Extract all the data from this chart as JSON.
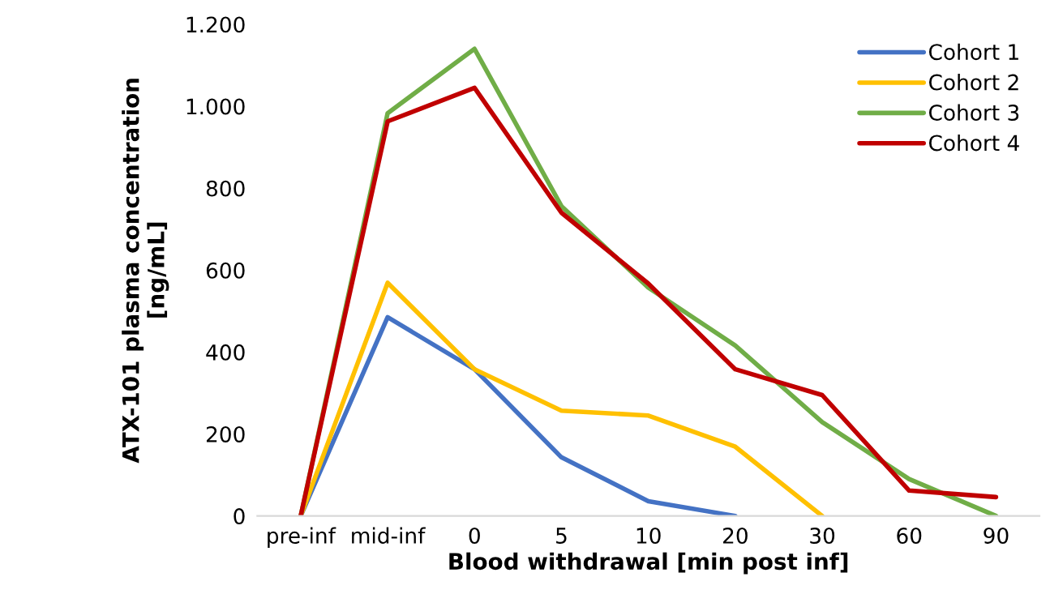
{
  "chart_data": {
    "type": "line",
    "xlabel": "Blood withdrawal [min post inf]",
    "ylabel": "ATX-101 plasma concentration\n[ng/mL]",
    "categories": [
      "pre-inf",
      "mid-inf",
      "0",
      "5",
      "10",
      "20",
      "30",
      "60",
      "90"
    ],
    "series": [
      {
        "name": "Cohort 1",
        "color": "#4472c4",
        "values": [
          0,
          485,
          358,
          143,
          36,
          0,
          null,
          null,
          null
        ]
      },
      {
        "name": "Cohort 2",
        "color": "#ffc000",
        "values": [
          0,
          569,
          358,
          257,
          245,
          169,
          0,
          null,
          null
        ]
      },
      {
        "name": "Cohort 3",
        "color": "#70ad47",
        "values": [
          0,
          983,
          1140,
          756,
          557,
          416,
          229,
          90,
          0
        ]
      },
      {
        "name": "Cohort 4",
        "color": "#c00000",
        "values": [
          0,
          963,
          1045,
          740,
          567,
          358,
          295,
          62,
          46
        ]
      }
    ],
    "ylim": [
      0,
      1200
    ],
    "yticks": [
      0,
      200,
      400,
      600,
      800,
      {
        "value": 1000,
        "label": "1.000"
      },
      {
        "value": 1200,
        "label": "1.200"
      }
    ],
    "grid": false,
    "legend": "top right",
    "marker": "none",
    "line_style": "solid"
  }
}
